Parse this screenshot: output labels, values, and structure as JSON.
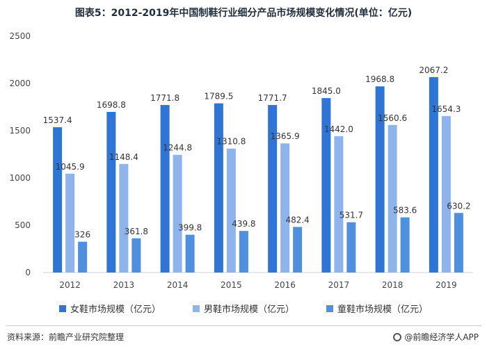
{
  "title": "图表5：2012-2019年中国制鞋行业细分产品市场规模变化情况(单位：亿元)",
  "chart_data": {
    "type": "bar",
    "categories": [
      "2012",
      "2013",
      "2014",
      "2015",
      "2016",
      "2017",
      "2018",
      "2019"
    ],
    "series": [
      {
        "name": "女鞋市场规模（亿元）",
        "values": [
          1537.4,
          1698.8,
          1771.8,
          1789.5,
          1771.7,
          1845.0,
          1968.8,
          2067.2
        ],
        "labels": [
          "1537.4",
          "1698.8",
          "1771.8",
          "1789.5",
          "1771.7",
          "1845.0",
          "1968.8",
          "2067.2"
        ],
        "color": "#2e75d6"
      },
      {
        "name": "男鞋市场规模（亿元）",
        "values": [
          1045.9,
          1148.4,
          1244.8,
          1310.8,
          1365.9,
          1442.0,
          1560.6,
          1654.3
        ],
        "labels": [
          "1045.9",
          "1148.4",
          "1244.8",
          "1310.8",
          "1365.9",
          "1442.0",
          "1560.6",
          "1654.3"
        ],
        "color": "#8db4ec"
      },
      {
        "name": "童鞋市场规模（亿元）",
        "values": [
          326,
          361.8,
          399.8,
          439.8,
          482.4,
          531.7,
          583.6,
          630.2
        ],
        "labels": [
          "326",
          "361.8",
          "399.8",
          "439.8",
          "482.4",
          "531.7",
          "583.6",
          "630.2"
        ],
        "color": "#4f8fe0"
      }
    ],
    "ylim": [
      0,
      2500
    ],
    "yticks": [
      "0",
      "500",
      "1000",
      "1500",
      "2000",
      "2500"
    ],
    "legend_position": "bottom",
    "grid": false
  },
  "footer": {
    "source": "资料来源：前瞻产业研究院整理",
    "brand": "@前瞻经济学人APP"
  }
}
